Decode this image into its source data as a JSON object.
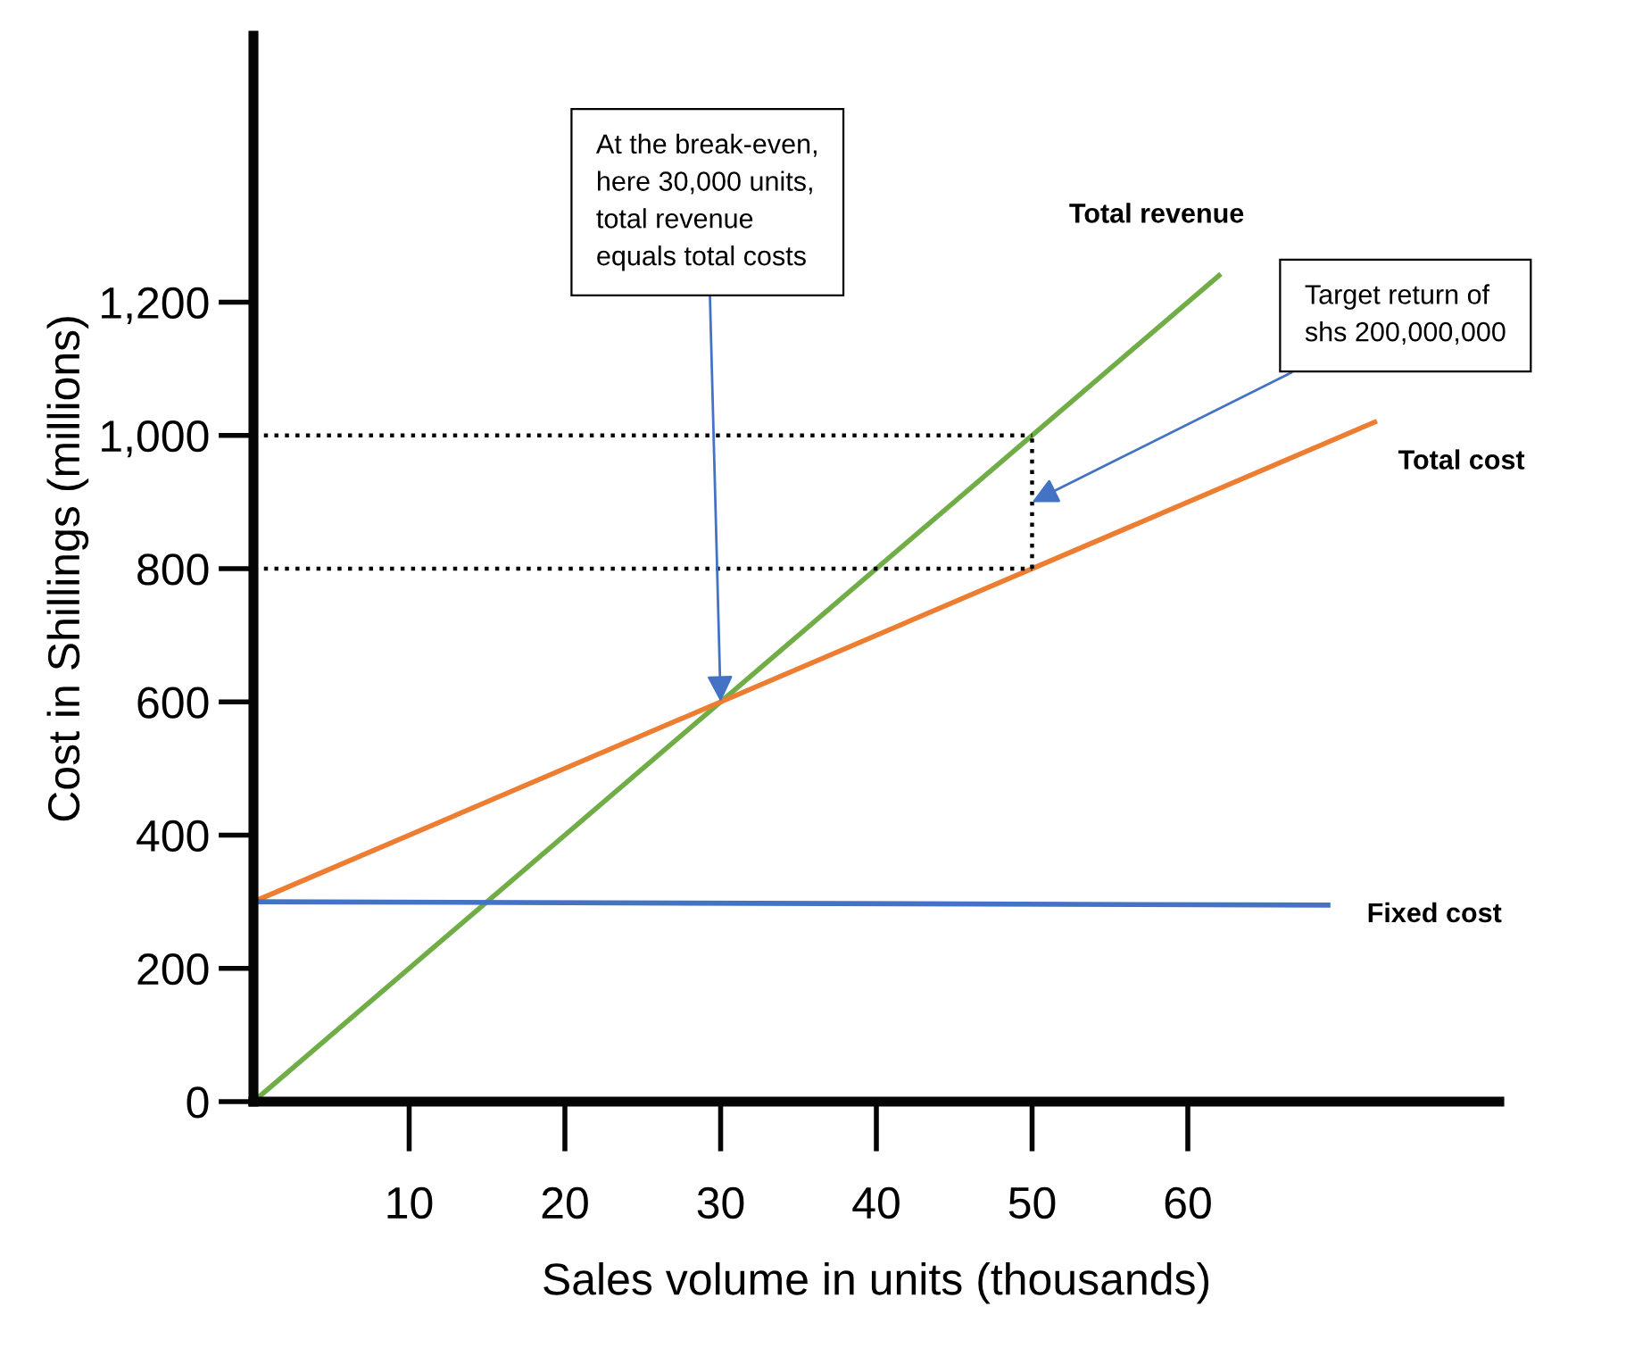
{
  "chart_data": {
    "type": "line",
    "xlabel": "Sales volume in units (thousands)",
    "ylabel": "Cost in Shillings (millions)",
    "xlim": [
      0,
      80
    ],
    "ylim": [
      0,
      1600
    ],
    "xticks": [
      10,
      20,
      30,
      40,
      50,
      60
    ],
    "yticks": [
      0,
      200,
      400,
      600,
      800,
      {
        "value": 1000,
        "label": "1,000"
      },
      {
        "value": 1200,
        "label": "1,200"
      }
    ],
    "grid": false,
    "legend": false,
    "marker": "none",
    "series": [
      {
        "name": "Total revenue",
        "color": "#70ad47",
        "x": [
          0,
          62
        ],
        "values": [
          0,
          1240
        ]
      },
      {
        "name": "Total cost",
        "color": "#ed7d31",
        "x": [
          0,
          72
        ],
        "values": [
          300,
          1020
        ]
      },
      {
        "name": "Fixed cost",
        "color": "#4472c4",
        "x": [
          0,
          69
        ],
        "values": [
          300,
          295
        ]
      },
      {
        "color": "#000000",
        "line_style": "dotted",
        "x": [
          0,
          50
        ],
        "values": [
          1000,
          1000
        ]
      },
      {
        "color": "#000000",
        "line_style": "dotted",
        "x": [
          0,
          50
        ],
        "values": [
          800,
          800
        ]
      },
      {
        "color": "#000000",
        "line_style": "dotted",
        "x": [
          50,
          50
        ],
        "values": [
          800,
          1000
        ]
      }
    ],
    "annotations": [
      {
        "text": "At the break-even,\nhere 30,000 units,\ntotal revenue\nequals total costs",
        "x": 30,
        "y": 600
      },
      {
        "text": "Target return of\nshs 200,000,000",
        "x": 50,
        "y": 900
      }
    ]
  }
}
